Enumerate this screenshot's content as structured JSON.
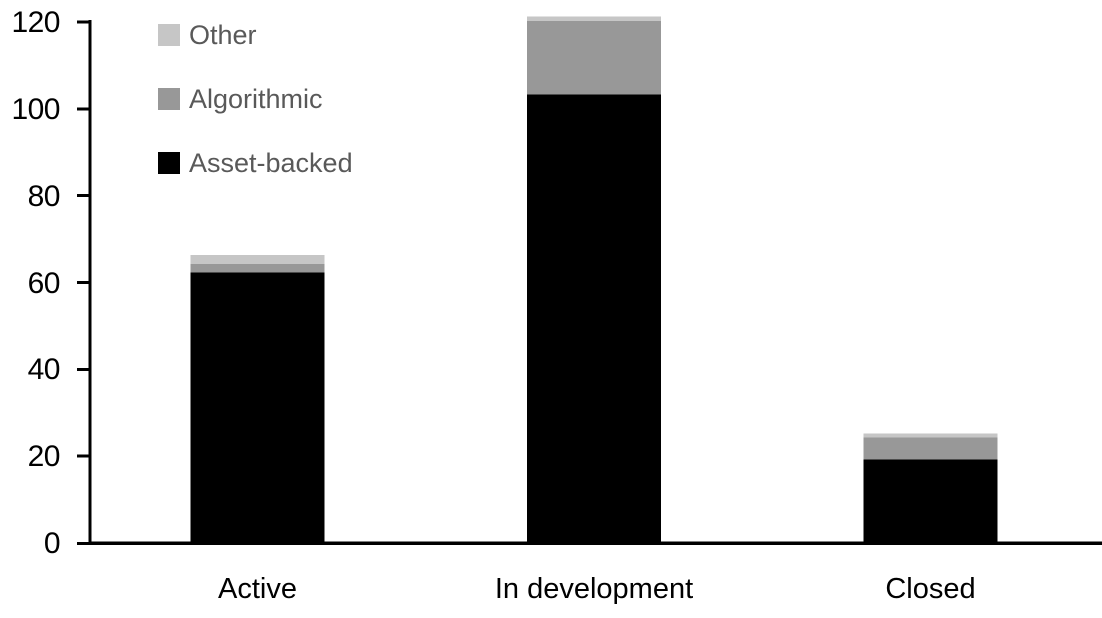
{
  "chart_data": {
    "type": "bar",
    "stacked": true,
    "title": "",
    "categories": [
      "Active",
      "In development",
      "Closed"
    ],
    "series": [
      {
        "name": "Asset-backed",
        "color": "#000000",
        "values": [
          62,
          103,
          19
        ]
      },
      {
        "name": "Algorithmic",
        "color": "#989898",
        "values": [
          2,
          17,
          5
        ]
      },
      {
        "name": "Other",
        "color": "#c6c6c6",
        "values": [
          2,
          1,
          1
        ]
      }
    ],
    "stack_totals": [
      66,
      121,
      25
    ],
    "y_ticks": [
      "0",
      "20",
      "40",
      "60",
      "80",
      "100",
      "120"
    ],
    "ylim": [
      0,
      120
    ],
    "xlabel": "",
    "ylabel": "",
    "grid": false,
    "legend_position": "top-left",
    "legend_order_top_to_bottom": [
      "Other",
      "Algorithmic",
      "Asset-backed"
    ]
  },
  "styles": {
    "background_color": "#ffffff",
    "axis_color": "#000000",
    "axis_text_color": "#000000",
    "legend_text_color": "#595959",
    "asset_backed_color": "#000000",
    "algorithmic_color": "#989898",
    "other_color": "#c6c6c6"
  }
}
